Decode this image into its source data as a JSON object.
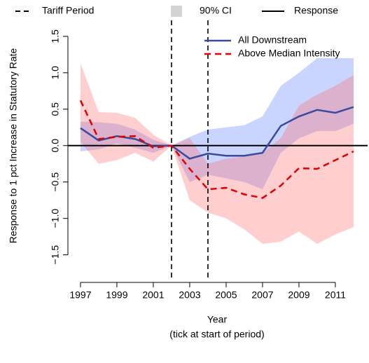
{
  "chart_data": {
    "type": "line",
    "y_label": "Response to 1 pct Increase in Statutory Rate",
    "x_label": "Year",
    "x_sublabel": "(tick at start of period)",
    "legend_top": [
      "Tariff Period",
      "90% CI",
      "Response"
    ],
    "x": [
      1997,
      1998,
      1999,
      2000,
      2001,
      2002,
      2003,
      2004,
      2005,
      2006,
      2007,
      2008,
      2009,
      2010,
      2011,
      2012
    ],
    "series": [
      {
        "name": "All Downstream",
        "color": "#3b4a9c",
        "dash": false,
        "band_color": "#5b7cff",
        "values": [
          0.24,
          0.07,
          0.13,
          0.09,
          -0.01,
          0.0,
          -0.18,
          -0.11,
          -0.14,
          -0.14,
          -0.1,
          0.27,
          0.4,
          0.49,
          0.45,
          0.53
        ],
        "ci_lower": [
          -0.08,
          -0.05,
          0.03,
          -0.03,
          -0.1,
          0.0,
          -0.5,
          -0.4,
          -0.45,
          -0.5,
          -0.6,
          -0.1,
          0.1,
          0.2,
          0.2,
          0.3
        ],
        "ci_upper": [
          0.33,
          0.32,
          0.3,
          0.22,
          0.08,
          0.0,
          0.12,
          0.22,
          0.25,
          0.28,
          0.4,
          0.82,
          1.0,
          1.2,
          1.2,
          1.2
        ]
      },
      {
        "name": "Above Median Intensity",
        "color": "#e00000",
        "dash": true,
        "band_color": "#ff6b6b",
        "values": [
          0.62,
          0.09,
          0.12,
          0.13,
          -0.03,
          0.0,
          -0.32,
          -0.6,
          -0.58,
          -0.67,
          -0.72,
          -0.55,
          -0.31,
          -0.32,
          -0.2,
          -0.08
        ],
        "ci_lower": [
          0.05,
          -0.25,
          -0.2,
          -0.1,
          -0.22,
          0.0,
          -0.75,
          -0.92,
          -1.0,
          -1.15,
          -1.35,
          -1.32,
          -1.18,
          -1.35,
          -1.22,
          -1.12
        ],
        "ci_upper": [
          1.13,
          0.46,
          0.45,
          0.38,
          0.15,
          0.0,
          0.1,
          -0.25,
          -0.18,
          -0.15,
          -0.1,
          0.1,
          0.55,
          0.7,
          0.82,
          0.97
        ]
      }
    ],
    "vlines": [
      2002,
      2004
    ],
    "hline": 0,
    "xlim": [
      1996.31,
      2012.77
    ],
    "ylim": [
      -1.85,
      1.72
    ],
    "xticks": [
      1997,
      1999,
      2001,
      2003,
      2005,
      2007,
      2009,
      2011
    ],
    "yticks": [
      1.5,
      {
        "value": 1.0,
        "label": "1.0"
      },
      0.5,
      {
        "value": 0.0,
        "label": "0.0"
      },
      {
        "value": -0.5,
        "label": "−0.5"
      },
      {
        "value": -1.0,
        "label": "−1.0"
      },
      {
        "value": -1.5,
        "label": "−1.5"
      }
    ],
    "legend_position": "top-right"
  }
}
